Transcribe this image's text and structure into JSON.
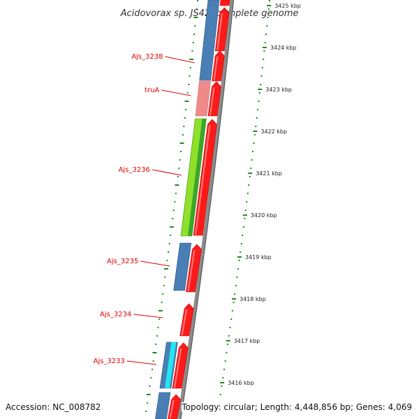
{
  "title": "Acidovorax sp. JS42, complete genome",
  "footer": {
    "accession": "Accession: NC_008782",
    "topology": "Topology: circular; Length: 4,448,856 bp; Genes: 4,069"
  },
  "colors": {
    "forward_cds": "#ff1a1a",
    "reverse_cds_blue": "#4a7fb5",
    "reverse_cds_pink": "#f08a8a",
    "reverse_cds_green": "#8ee02a",
    "reverse_cds_cyan": "#22e6f2",
    "backbone": "#8c8c8c",
    "tick_marks": "#1e8a1e",
    "label_color": "#e10000"
  },
  "scale_ticks": [
    {
      "label": "3425 kbp",
      "faded": true
    },
    {
      "label": "3424 kbp"
    },
    {
      "label": "3423 kbp"
    },
    {
      "label": "3422 kbp"
    },
    {
      "label": "3421 kbp"
    },
    {
      "label": "3420 kbp"
    },
    {
      "label": "3419 kbp"
    },
    {
      "label": "3418 kbp"
    },
    {
      "label": "3417 kbp"
    },
    {
      "label": "3416 kbp"
    }
  ],
  "gene_labels": [
    {
      "name": "Ajs_3238"
    },
    {
      "name": "truA"
    },
    {
      "name": "Ajs_3236"
    },
    {
      "name": "Ajs_3235"
    },
    {
      "name": "Ajs_3234"
    },
    {
      "name": "Ajs_3233"
    }
  ]
}
